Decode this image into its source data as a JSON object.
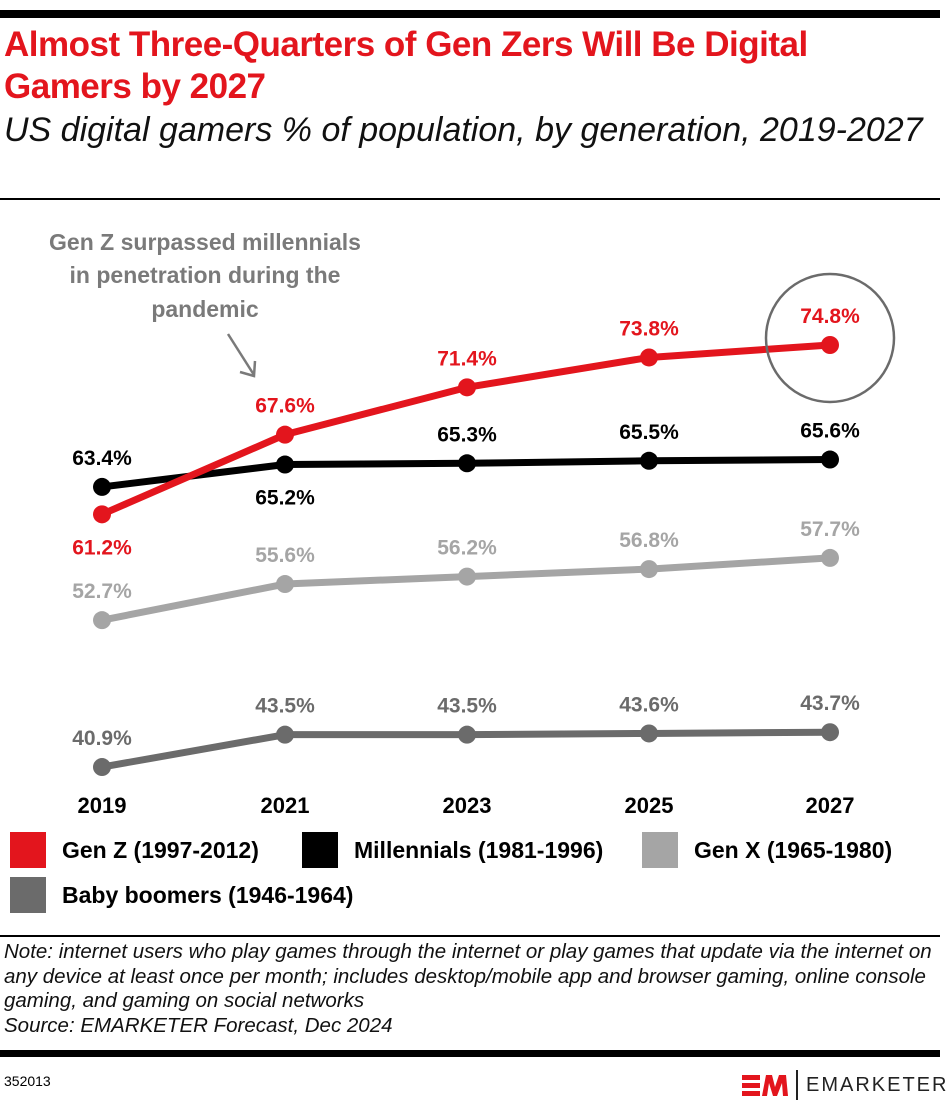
{
  "title": "Almost Three-Quarters of Gen Zers Will Be Digital Gamers by 2027",
  "subtitle": "US digital gamers % of population, by generation, 2019-2027",
  "annotation": [
    "Gen Z surpassed millennials",
    "in penetration during the",
    "pandemic"
  ],
  "note": "Note: internet users who play games through the internet or play games that update via the internet on any device at least once per month; includes desktop/mobile app and browser gaming, online console gaming, and gaming on social networks",
  "source": "Source: EMARKETER Forecast, Dec 2024",
  "chart_id": "352013",
  "brand": {
    "logo_mark": "EM",
    "name": "EMARKETER"
  },
  "chart_data": {
    "type": "line",
    "title": "Almost Three-Quarters of Gen Zers Will Be Digital Gamers by 2027",
    "subtitle": "US digital gamers % of population, by generation, 2019-2027",
    "categories": [
      "2019",
      "2021",
      "2023",
      "2025",
      "2027"
    ],
    "unit": "%",
    "legend_position": "bottom",
    "grid": false,
    "series": [
      {
        "name": "Gen Z (1997-2012)",
        "color": "#e3151d",
        "values": [
          61.2,
          67.6,
          71.4,
          73.8,
          74.8
        ],
        "labels": [
          "61.2%",
          "67.6%",
          "71.4%",
          "73.8%",
          "74.8%"
        ]
      },
      {
        "name": "Millennials (1981-1996)",
        "color": "#000000",
        "values": [
          63.4,
          65.2,
          65.3,
          65.5,
          65.6
        ],
        "labels": [
          "63.4%",
          "65.2%",
          "65.3%",
          "65.5%",
          "65.6%"
        ]
      },
      {
        "name": "Gen X (1965-1980)",
        "color": "#a5a5a5",
        "values": [
          52.7,
          55.6,
          56.2,
          56.8,
          57.7
        ],
        "labels": [
          "52.7%",
          "55.6%",
          "56.2%",
          "56.8%",
          "57.7%"
        ]
      },
      {
        "name": "Baby boomers (1946-1964)",
        "color": "#6b6b6b",
        "values": [
          40.9,
          43.5,
          43.5,
          43.6,
          43.7
        ],
        "labels": [
          "40.9%",
          "43.5%",
          "43.5%",
          "43.6%",
          "43.7%"
        ]
      }
    ],
    "highlight": {
      "series": "Gen Z (1997-2012)",
      "category": "2027",
      "shape": "circle"
    }
  }
}
